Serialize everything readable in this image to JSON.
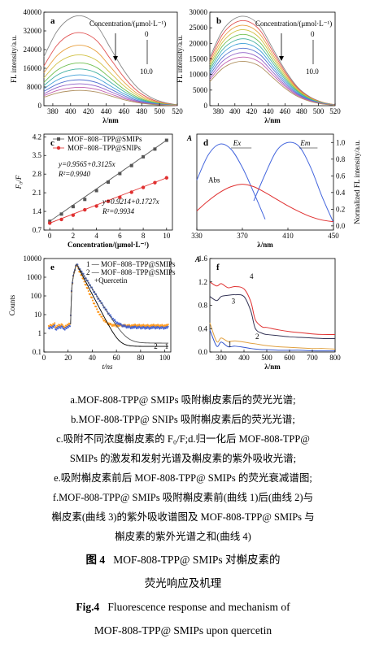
{
  "chart_data": [
    {
      "id": "a",
      "panel_label": "a",
      "type": "line",
      "title": "",
      "xlabel": "λ/nm",
      "ylabel": "FL intensity/a.u.",
      "xlim": [
        370,
        520
      ],
      "ylim": [
        0,
        40000
      ],
      "xticks": [
        380,
        400,
        420,
        440,
        460,
        480,
        500,
        520
      ],
      "yticks": [
        0,
        8000,
        16000,
        24000,
        32000,
        40000
      ],
      "annotation": "Concentration/(μmol·L⁻¹)",
      "arrow_start_label": "0",
      "arrow_end_label": "10.0",
      "series": [
        {
          "peak": 38200,
          "values": [
            21000,
            32000,
            37500,
            38200,
            34000,
            24500,
            15000,
            7800,
            3600,
            1400,
            400
          ]
        },
        {
          "peak": 31000,
          "values": [
            17000,
            26000,
            30500,
            31000,
            27600,
            19900,
            12200,
            6300,
            2900,
            1100,
            330
          ]
        },
        {
          "peak": 25700,
          "values": [
            14100,
            21500,
            25200,
            25700,
            22900,
            16500,
            10100,
            5200,
            2400,
            950,
            270
          ]
        },
        {
          "peak": 21600,
          "values": [
            11900,
            18100,
            21200,
            21600,
            19200,
            13900,
            8500,
            4400,
            2000,
            800,
            230
          ]
        },
        {
          "peak": 18200,
          "values": [
            10000,
            15200,
            17800,
            18200,
            16200,
            11700,
            7100,
            3700,
            1700,
            670,
            190
          ]
        },
        {
          "peak": 15600,
          "values": [
            8600,
            13100,
            15300,
            15600,
            13900,
            10000,
            6100,
            3200,
            1460,
            570,
            165
          ]
        },
        {
          "peak": 13100,
          "values": [
            7200,
            11000,
            12800,
            13100,
            11700,
            8400,
            5100,
            2700,
            1230,
            480,
            140
          ]
        },
        {
          "peak": 11000,
          "values": [
            6100,
            9200,
            10800,
            11000,
            9800,
            7100,
            4300,
            2250,
            1030,
            400,
            115
          ]
        },
        {
          "peak": 9300,
          "values": [
            5100,
            7800,
            9100,
            9300,
            8300,
            6000,
            3650,
            1900,
            870,
            340,
            100
          ]
        },
        {
          "peak": 7800,
          "values": [
            4300,
            6500,
            7600,
            7800,
            6950,
            5000,
            3050,
            1600,
            730,
            285,
            85
          ]
        },
        {
          "peak": 6500,
          "values": [
            3600,
            5400,
            6350,
            6500,
            5800,
            4200,
            2550,
            1330,
            610,
            240,
            70
          ]
        }
      ],
      "x": [
        370,
        385,
        400,
        415,
        430,
        445,
        460,
        475,
        490,
        505,
        520
      ]
    },
    {
      "id": "b",
      "panel_label": "b",
      "type": "line",
      "title": "",
      "xlabel": "λ/nm",
      "ylabel": "FL intensity/a.u.",
      "xlim": [
        370,
        520
      ],
      "ylim": [
        0,
        30000
      ],
      "xticks": [
        380,
        400,
        420,
        440,
        460,
        480,
        500,
        520
      ],
      "yticks": [
        0,
        5000,
        10000,
        15000,
        20000,
        25000,
        30000
      ],
      "annotation": "Concentration/(μmol·L⁻¹)",
      "arrow_start_label": "0",
      "arrow_end_label": "10.0",
      "x": [
        370,
        385,
        400,
        415,
        430,
        445,
        460,
        475,
        490,
        505,
        520
      ],
      "series": [
        {
          "values": [
            15500,
            24000,
            28000,
            28500,
            25500,
            18500,
            11500,
            6000,
            2800,
            1100,
            300
          ]
        },
        {
          "values": [
            14700,
            22800,
            26600,
            27100,
            24200,
            17600,
            10900,
            5700,
            2650,
            1050,
            285
          ]
        },
        {
          "values": [
            13900,
            21500,
            25200,
            25600,
            22900,
            16600,
            10300,
            5400,
            2500,
            990,
            270
          ]
        },
        {
          "values": [
            13100,
            20300,
            23800,
            24200,
            21600,
            15700,
            9700,
            5100,
            2370,
            930,
            255
          ]
        },
        {
          "values": [
            12300,
            19100,
            22300,
            22700,
            20300,
            14700,
            9100,
            4800,
            2220,
            880,
            240
          ]
        },
        {
          "values": [
            11500,
            17900,
            20900,
            21300,
            19000,
            13800,
            8500,
            4500,
            2080,
            820,
            225
          ]
        },
        {
          "values": [
            10700,
            16700,
            19500,
            19800,
            17700,
            12800,
            7900,
            4150,
            1930,
            760,
            210
          ]
        },
        {
          "values": [
            9900,
            15400,
            18000,
            18300,
            16400,
            11900,
            7300,
            3850,
            1790,
            700,
            195
          ]
        },
        {
          "values": [
            9100,
            14200,
            16600,
            16900,
            15100,
            10900,
            6700,
            3550,
            1650,
            650,
            180
          ]
        },
        {
          "values": [
            8400,
            13000,
            15200,
            15500,
            13900,
            10000,
            6200,
            3250,
            1510,
            595,
            165
          ]
        },
        {
          "values": [
            7700,
            11900,
            13900,
            14100,
            12600,
            9100,
            5600,
            2960,
            1380,
            540,
            150
          ]
        }
      ]
    },
    {
      "id": "c",
      "panel_label": "c",
      "type": "scatter",
      "title": "",
      "xlabel": "Concentration/(μmol·L⁻¹)",
      "ylabel": "F₀/F",
      "xlim": [
        -0.5,
        10.5
      ],
      "ylim": [
        0.7,
        4.3
      ],
      "xticks": [
        0,
        2,
        4,
        6,
        8,
        10
      ],
      "yticks": [
        0.7,
        1.4,
        2.1,
        2.8,
        3.5,
        4.2
      ],
      "legend_location": "top-left",
      "series": [
        {
          "name": "MOF−808−TPP@SMIPs",
          "color": "#555555",
          "x": [
            0,
            1,
            2,
            3,
            4,
            5,
            6,
            7,
            8,
            9,
            10
          ],
          "values": [
            1.03,
            1.3,
            1.58,
            1.85,
            2.18,
            2.5,
            2.82,
            3.12,
            3.45,
            3.74,
            4.07
          ],
          "fit": "y=0.9565+0.3125x",
          "r2": "R²=0.9940"
        },
        {
          "name": "MOF−808−TPP@SNIPs",
          "color": "#e03030",
          "x": [
            0,
            1,
            2,
            3,
            4,
            5,
            6,
            7,
            8,
            9,
            10
          ],
          "values": [
            0.96,
            1.1,
            1.26,
            1.46,
            1.6,
            1.78,
            1.93,
            2.12,
            2.3,
            2.48,
            2.66
          ],
          "fit": "y=0.9214+0.1727x",
          "r2": "R²=0.9934"
        }
      ]
    },
    {
      "id": "d",
      "panel_label": "d",
      "type": "line",
      "title": "",
      "xlabel": "λ/nm",
      "ylabel": "A",
      "ylabel_right": "Normalized FL intensity/a.u.",
      "xlim": [
        330,
        450
      ],
      "xticks": [
        330,
        370,
        410,
        450
      ],
      "yticks_right": [
        0.0,
        0.2,
        0.4,
        0.6,
        0.8,
        1.0
      ],
      "labels": {
        "ex": "Ex",
        "em": "Em",
        "abs": "Abs"
      },
      "x": [
        330,
        340,
        350,
        360,
        370,
        380,
        390,
        400,
        410,
        420,
        430,
        440,
        450
      ],
      "series": [
        {
          "name": "Ex",
          "color": "#4466dd",
          "values": [
            0.55,
            0.85,
            0.98,
            0.92,
            0.7,
            0.4,
            0.08,
            null,
            null,
            null,
            null,
            null,
            null
          ]
        },
        {
          "name": "Em",
          "color": "#4466dd",
          "values": [
            null,
            null,
            null,
            null,
            null,
            0.3,
            0.62,
            0.9,
            1.0,
            0.95,
            0.7,
            0.35,
            0.04
          ]
        },
        {
          "name": "Abs",
          "color": "#e03030",
          "values": [
            0.18,
            0.3,
            0.4,
            0.47,
            0.5,
            0.47,
            0.4,
            0.32,
            0.24,
            0.17,
            0.11,
            0.07,
            0.05
          ]
        }
      ]
    },
    {
      "id": "e",
      "panel_label": "e",
      "type": "scatter",
      "title": "",
      "xlabel": "t/ns",
      "ylabel": "Counts",
      "xlim": [
        0,
        105
      ],
      "yscale": "log",
      "ylim": [
        0.1,
        10000
      ],
      "xticks": [
        0,
        20,
        40,
        60,
        80,
        100
      ],
      "yticks": [
        0.1,
        1,
        10,
        100,
        1000,
        10000
      ],
      "legend_location": "top-right",
      "legend": [
        "1 — MOF−808−TPP@SMIPs",
        "2 — MOF−808−TPP@SMIPs",
        "+Quercetin"
      ],
      "curve_labels": [
        "2",
        "1"
      ],
      "series": [
        {
          "name": "1",
          "color": "#3355cc",
          "peak_x": 27,
          "peak_value": 5200
        },
        {
          "name": "2",
          "color": "#ff8c00",
          "peak_x": 27,
          "peak_value": 4800
        }
      ]
    },
    {
      "id": "f",
      "panel_label": "f",
      "type": "line",
      "title": "",
      "xlabel": "λ/nm",
      "ylabel": "A",
      "xlim": [
        250,
        800
      ],
      "ylim": [
        0.0,
        1.6
      ],
      "xticks": [
        300,
        400,
        500,
        600,
        700,
        800
      ],
      "yticks": [
        0.0,
        0.4,
        0.8,
        1.2,
        1.6
      ],
      "curve_labels": [
        "1",
        "2",
        "3",
        "4"
      ],
      "x": [
        250,
        280,
        300,
        330,
        360,
        400,
        430,
        450,
        480,
        500,
        550,
        600,
        650,
        700,
        750,
        800
      ],
      "series": [
        {
          "name": "1",
          "color": "#3355cc",
          "values": [
            0.38,
            0.1,
            0.17,
            0.09,
            0.1,
            0.08,
            0.06,
            0.05,
            0.04,
            0.04,
            0.03,
            0.03,
            0.03,
            0.02,
            0.02,
            0.02
          ]
        },
        {
          "name": "2",
          "color": "#e0a040",
          "values": [
            0.5,
            0.18,
            0.24,
            0.18,
            0.19,
            0.17,
            0.15,
            0.14,
            0.12,
            0.11,
            0.09,
            0.08,
            0.07,
            0.06,
            0.06,
            0.05
          ]
        },
        {
          "name": "3",
          "color": "#333355",
          "values": [
            0.95,
            0.88,
            0.95,
            0.97,
            0.98,
            0.95,
            0.7,
            0.4,
            0.32,
            0.3,
            0.28,
            0.26,
            0.25,
            0.24,
            0.23,
            0.23
          ]
        },
        {
          "name": "4",
          "color": "#e03030",
          "values": [
            1.2,
            1.13,
            1.17,
            1.1,
            1.12,
            1.08,
            0.86,
            0.55,
            0.43,
            0.42,
            0.38,
            0.35,
            0.33,
            0.31,
            0.3,
            0.3
          ]
        }
      ]
    }
  ],
  "caption": {
    "lines": [
      "a.MOF-808-TPP@ SMIPs 吸附槲皮素后的荧光光谱;",
      "b.MOF-808-TPP@ SNIPs 吸附槲皮素后的荧光光谱;",
      "c.吸附不同浓度槲皮素的 F₀/F;d.归一化后 MOF-808-TPP@",
      "SMIPs 的激发和发射光谱及槲皮素的紫外吸收光谱;",
      "e.吸附槲皮素前后 MOF-808-TPP@ SMIPs 的荧光衰减谱图;",
      "f.MOF-808-TPP@ SMIPs 吸附槲皮素前(曲线 1)后(曲线 2)与",
      "槲皮素(曲线 3)的紫外吸收谱图及 MOF-808-TPP@ SMIPs 与",
      "槲皮素的紫外光谱之和(曲线 4)"
    ],
    "fig_num_cn": "图 4",
    "title_cn_1": "MOF-808-TPP@ SMIPs 对槲皮素的",
    "title_cn_2": "荧光响应及机理",
    "fig_num_en": "Fig.4",
    "title_en_1": "Fluorescence response and mechanism of",
    "title_en_2": "MOF-808-TPP@ SMIPs upon quercetin"
  }
}
